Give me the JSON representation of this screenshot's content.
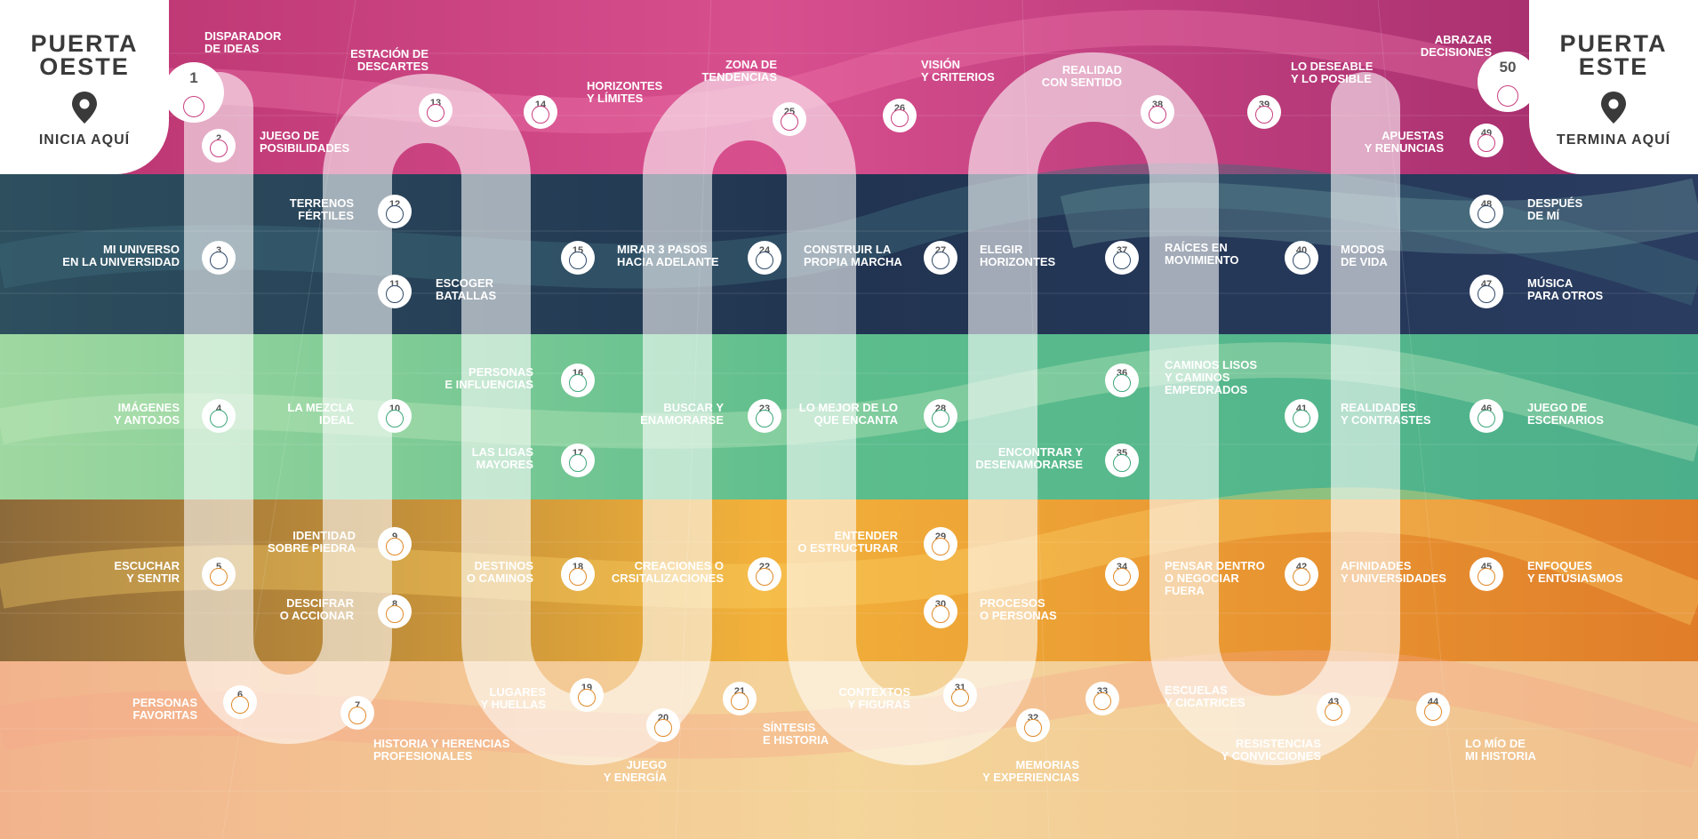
{
  "gates": {
    "west": {
      "title_line1": "PUERTA",
      "title_line2": "OESTE",
      "label": "INICIA AQUÍ"
    },
    "east": {
      "title_line1": "PUERTA",
      "title_line2": "ESTE",
      "label": "TERMINA AQUÍ"
    }
  },
  "icons": {
    "gate": "location-pin-icon"
  },
  "colors": {
    "band_magenta": "#c03c7c",
    "band_navy": "#243a5a",
    "band_green": "#56b98a",
    "band_orange": "#e6962a",
    "band_sand": "#f0cd90",
    "ring_magenta": "#c93e7f",
    "ring_navy": "#2e4a6a",
    "ring_green": "#3fa77a",
    "ring_orange": "#e08a2a",
    "track": "#ffffff"
  },
  "stations": [
    {
      "num": "1",
      "label": "DISPARADOR\nDE IDEAS"
    },
    {
      "num": "2",
      "label": "JUEGO DE\nPOSIBILIDADES"
    },
    {
      "num": "3",
      "label": "MI UNIVERSO\nEN LA UNIVERSIDAD"
    },
    {
      "num": "4",
      "label": "IMÁGENES\nY ANTOJOS"
    },
    {
      "num": "5",
      "label": "ESCUCHAR\nY SENTIR"
    },
    {
      "num": "6",
      "label": "PERSONAS\nFAVORITAS"
    },
    {
      "num": "7",
      "label": "HISTORIA Y HERENCIAS\nPROFESIONALES"
    },
    {
      "num": "8",
      "label": "DESCIFRAR\nO ACCIONAR"
    },
    {
      "num": "9",
      "label": "IDENTIDAD\nSOBRE PIEDRA"
    },
    {
      "num": "10",
      "label": "LA MEZCLA\nIDEAL"
    },
    {
      "num": "11",
      "label": "ESCOGER\nBATALLAS"
    },
    {
      "num": "12",
      "label": "TERRENOS\nFÉRTILES"
    },
    {
      "num": "13",
      "label": "ESTACIÓN DE\nDESCARTES"
    },
    {
      "num": "14",
      "label": "HORIZONTES\nY LÍMITES"
    },
    {
      "num": "15",
      "label": "MIRAR 3 PASOS\nHACIA ADELANTE"
    },
    {
      "num": "16",
      "label": "PERSONAS\nE INFLUENCIAS"
    },
    {
      "num": "17",
      "label": "LAS LIGAS\nMAYORES"
    },
    {
      "num": "18",
      "label": "DESTINOS\nO CAMINOS"
    },
    {
      "num": "19",
      "label": "LUGARES\nY HUELLAS"
    },
    {
      "num": "20",
      "label": "JUEGO\nY ENERGÍA"
    },
    {
      "num": "21",
      "label": "SÍNTESIS\nE HISTORIA"
    },
    {
      "num": "22",
      "label": "CREACIONES O\nCRSITALIZACIONES"
    },
    {
      "num": "23",
      "label": "BUSCAR Y\nENAMORARSE"
    },
    {
      "num": "24",
      "label": "CONSTRUIR LA\nPROPIA MARCHA"
    },
    {
      "num": "25",
      "label": "ZONA DE\nTENDENCIAS"
    },
    {
      "num": "26",
      "label": "VISIÓN\nY CRITERIOS"
    },
    {
      "num": "27",
      "label": "ELEGIR\nHORIZONTES"
    },
    {
      "num": "28",
      "label": "LO MEJOR DE LO\nQUE ENCANTA"
    },
    {
      "num": "29",
      "label": "ENTENDER\nO ESTRUCTURAR"
    },
    {
      "num": "30",
      "label": "PROCESOS\nO PERSONAS"
    },
    {
      "num": "31",
      "label": "CONTEXTOS\nY FIGURAS"
    },
    {
      "num": "32",
      "label": "MEMORIAS\nY EXPERIENCIAS"
    },
    {
      "num": "33",
      "label": "ESCUELAS\nY CICATRICES"
    },
    {
      "num": "34",
      "label": "PENSAR DENTRO\nO NEGOCIAR\nFUERA"
    },
    {
      "num": "35",
      "label": "ENCONTRAR Y\nDESENAMORARSE"
    },
    {
      "num": "36",
      "label": "CAMINOS LISOS\nY CAMINOS\nEMPEDRADOS"
    },
    {
      "num": "37",
      "label": "RAÍCES EN\nMOVIMIENTO"
    },
    {
      "num": "38",
      "label": "REALIDAD\nCON SENTIDO"
    },
    {
      "num": "39",
      "label": "LO DESEABLE\nY LO POSIBLE"
    },
    {
      "num": "40",
      "label": "MODOS\nDE VIDA"
    },
    {
      "num": "41",
      "label": "REALIDADES\nY CONTRASTES"
    },
    {
      "num": "42",
      "label": "AFINIDADES\nY UNIVERSIDADES"
    },
    {
      "num": "43",
      "label": "RESISTENCIAS\nY CONVICCIONES"
    },
    {
      "num": "44",
      "label": "LO MÍO DE\nMI HISTORIA"
    },
    {
      "num": "45",
      "label": "ENFOQUES\nY ENTUSIASMOS"
    },
    {
      "num": "46",
      "label": "JUEGO DE\nESCENARIOS"
    },
    {
      "num": "47",
      "label": "MÚSICA\nPARA OTROS"
    },
    {
      "num": "48",
      "label": "DESPUÉS\nDE MÍ"
    },
    {
      "num": "49",
      "label": "APUESTAS\nY RENUNCIAS"
    },
    {
      "num": "50",
      "label": "ABRAZAR\nDECISIONES"
    }
  ]
}
